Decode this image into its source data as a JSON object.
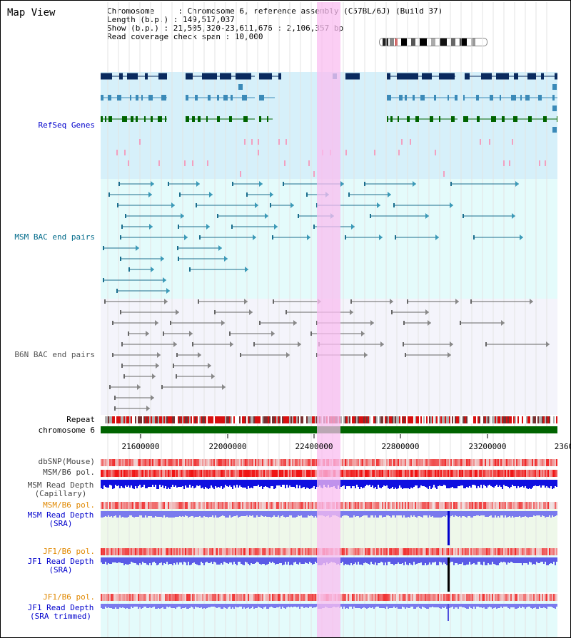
{
  "title": "Map View",
  "header": {
    "line1": "Chromosome     : Chromosome 6, reference assembly (C57BL/6J) (Build 37)",
    "line2": "Length (b.p.) : 149,517,037",
    "line3": "Show (b.p.) : 21,505,320-23,611,676 : 2,106,357 bp",
    "line4": "Read coverage check span : 10,000"
  },
  "tracks": {
    "refseq": "RefSeq Genes",
    "msm_bac": "MSM BAC end pairs",
    "b6n_bac": "B6N BAC end pairs",
    "repeat": "Repeat",
    "chromosome": "chromosome 6",
    "dbsnp": "dbSNP(Mouse)",
    "msm_b6_pol": "MSM/B6 pol.",
    "msm_rd_cap_1": "MSM Read Depth",
    "msm_rd_cap_2": "(Capillary)",
    "msm_b6_pol2": "MSM/B6 pol.",
    "msm_rd_sra_1": "MSM Read Depth",
    "msm_rd_sra_2": "(SRA)",
    "jf1_b6_pol": "JF1/B6 pol.",
    "jf1_rd_sra_1": "JF1 Read Depth",
    "jf1_rd_sra_2": "(SRA)",
    "jf1_b6_pol2": "JF1/B6 pol.",
    "jf1_rd_trim_1": "JF1 Read Depth",
    "jf1_rd_trim_2": "(SRA trimmed)"
  },
  "axis": {
    "ticks": [
      "21600000",
      "22000000",
      "22400000",
      "22800000",
      "23200000",
      "2360"
    ]
  },
  "colors": {
    "refseq_bg": "#d6f0fa",
    "bac_bg": "#e4fbfb",
    "b6n_bg": "#f4f4fb",
    "highlight": "#f7c0ee",
    "gene_dark": "#0a2a5e",
    "gene_mid": "#3b8ab8",
    "gene_green": "#006400",
    "read_blue": "#0000ee",
    "read_light": "#7a7aee"
  }
}
